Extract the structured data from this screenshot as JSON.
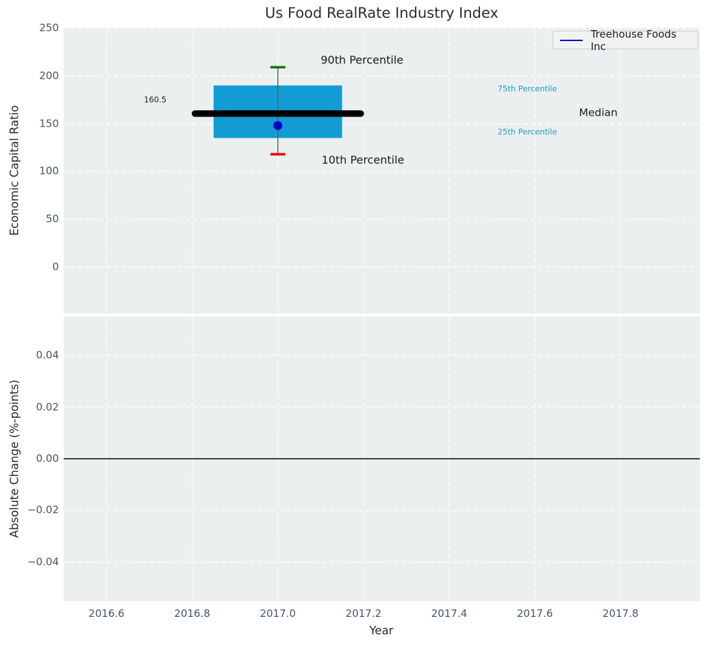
{
  "title": "Us Food RealRate Industry Index",
  "legend": {
    "label": "Treehouse Foods Inc"
  },
  "colors": {
    "axes_background": "#eceff0",
    "grid": "#ffffff",
    "box_fill": "#129cd3",
    "median_line": "#000000",
    "whisker": "#5b5b5b",
    "cap_90th": "#007d00",
    "cap_10th": "#ee0000",
    "company_point": "#0000cc",
    "legend_line": "#0000cc",
    "zero_line": "#000000",
    "tick_label": "#44536b",
    "percentile_accent": "#1b9ccb",
    "annotation_text": "#1a1a1a"
  },
  "chart_data": {
    "type": "box",
    "title": "Us Food RealRate Industry Index",
    "xlabel": "Year",
    "grid": "on",
    "legend_position": "upper right",
    "xlim": [
      2016.5,
      2017.985
    ],
    "xticks": {
      "values": [
        2016.6,
        2016.8,
        2017.0,
        2017.2,
        2017.4,
        2017.6,
        2017.8
      ],
      "labels": [
        "2016.6",
        "2016.8",
        "2017.0",
        "2017.2",
        "2017.4",
        "2017.6",
        "2017.8"
      ]
    },
    "top_panel": {
      "ylabel": "Economic Capital Ratio",
      "ylim": [
        -48.7,
        250.7
      ],
      "yticks": {
        "values": [
          250,
          200,
          150,
          100,
          50,
          0
        ],
        "labels": [
          "250",
          "200",
          "150",
          "100",
          "50",
          "0"
        ]
      },
      "box": {
        "x": 2017,
        "p10": 118,
        "p25": 135,
        "median": 160.5,
        "p75": 190,
        "p90": 209,
        "box_half_width": 0.15,
        "median_half_width": 0.2,
        "cap_half_width": 0.0175
      },
      "series": [
        {
          "name": "Treehouse Foods Inc",
          "x": 2017,
          "y": 148
        }
      ],
      "annotations": [
        {
          "id": "median-value",
          "text": "160.5",
          "x": 2016.74,
          "y": 175,
          "size": 11.5,
          "color": "#1a1a1a",
          "anchor": "end"
        },
        {
          "id": "p90-label",
          "text": "90th Percentile",
          "x": 2017.1,
          "y": 216,
          "size": 16,
          "color": "#1a1a1a",
          "anchor": "start"
        },
        {
          "id": "p10-label",
          "text": "10th Percentile",
          "x": 2017.102,
          "y": 112,
          "size": 16,
          "color": "#1a1a1a",
          "anchor": "start"
        },
        {
          "id": "p75-label",
          "text": "75th Percentile",
          "x": 2017.513,
          "y": 186,
          "size": 11.5,
          "color": "#1b9ccb",
          "anchor": "start"
        },
        {
          "id": "p25-label",
          "text": "25th Percentile",
          "x": 2017.513,
          "y": 141,
          "size": 11.5,
          "color": "#1b9ccb",
          "anchor": "start"
        },
        {
          "id": "median-label",
          "text": "Median",
          "x": 2017.703,
          "y": 161,
          "size": 15.5,
          "color": "#1a1a1a",
          "anchor": "start"
        }
      ]
    },
    "bottom_panel": {
      "ylabel": "Absolute Change (%-points)",
      "ylim": [
        -0.0551,
        0.0551
      ],
      "yticks": {
        "values": [
          0.04,
          0.02,
          0.0,
          -0.02,
          -0.04
        ],
        "labels": [
          "0.04",
          "0.02",
          "0.00",
          "−0.02",
          "−0.04"
        ]
      },
      "zero_line_y": 0.0
    }
  }
}
